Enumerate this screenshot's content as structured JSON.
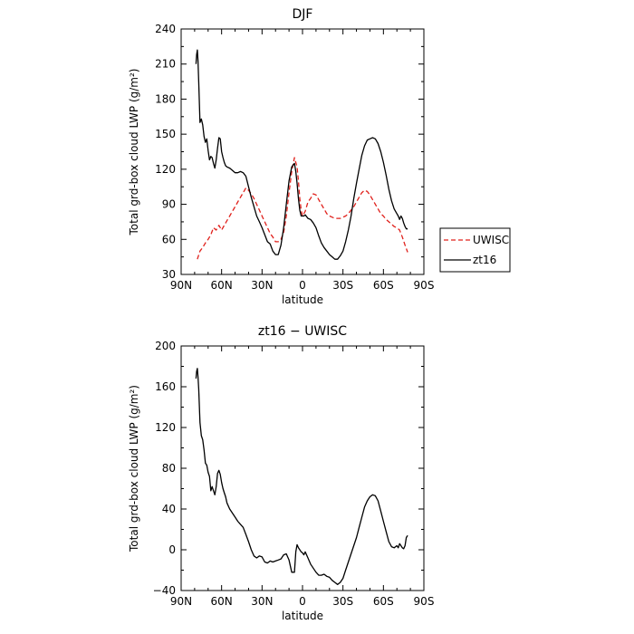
{
  "chart_data": [
    {
      "type": "line",
      "title": "DJF",
      "xlabel": "latitude",
      "ylabel": "Total grd-box cloud LWP (g/m²)",
      "xlim": [
        90,
        -90
      ],
      "ylim": [
        30,
        240
      ],
      "x_ticks": [
        {
          "value": 90,
          "label": "90N"
        },
        {
          "value": 60,
          "label": "60N"
        },
        {
          "value": 30,
          "label": "30N"
        },
        {
          "value": 0,
          "label": "0"
        },
        {
          "value": -30,
          "label": "30S"
        },
        {
          "value": -60,
          "label": "60S"
        },
        {
          "value": -90,
          "label": "90S"
        }
      ],
      "y_ticks": [
        {
          "value": 30,
          "label": "30"
        },
        {
          "value": 60,
          "label": "60"
        },
        {
          "value": 90,
          "label": "90"
        },
        {
          "value": 120,
          "label": "120"
        },
        {
          "value": 150,
          "label": "150"
        },
        {
          "value": 180,
          "label": "180"
        },
        {
          "value": 210,
          "label": "210"
        },
        {
          "value": 240,
          "label": "240"
        }
      ],
      "legend": {
        "placement": "right"
      },
      "series": [
        {
          "name": "UWISC",
          "color": "#e0201b",
          "dash": true,
          "x": [
            78,
            76,
            74,
            72,
            70,
            68,
            66,
            64,
            62,
            60,
            58,
            56,
            54,
            52,
            50,
            48,
            46,
            44,
            42,
            40,
            38,
            36,
            34,
            32,
            30,
            28,
            26,
            24,
            22,
            20,
            18,
            16,
            14,
            12,
            10,
            8,
            6,
            4,
            3,
            2,
            1,
            0,
            -2,
            -4,
            -6,
            -8,
            -10,
            -12,
            -14,
            -16,
            -18,
            -20,
            -22,
            -24,
            -26,
            -28,
            -30,
            -32,
            -34,
            -36,
            -38,
            -40,
            -42,
            -44,
            -46,
            -48,
            -50,
            -52,
            -54,
            -56,
            -58,
            -60,
            -62,
            -64,
            -66,
            -68,
            -70,
            -72,
            -74,
            -76,
            -78
          ],
          "y": [
            43,
            50,
            53,
            57,
            60,
            64,
            70,
            68,
            72,
            68,
            72,
            76,
            80,
            84,
            88,
            92,
            96,
            100,
            104,
            102,
            99,
            95,
            90,
            85,
            80,
            75,
            70,
            65,
            62,
            58,
            58,
            60,
            66,
            80,
            100,
            118,
            130,
            122,
            110,
            95,
            85,
            80,
            84,
            92,
            95,
            99,
            98,
            94,
            90,
            86,
            82,
            80,
            79,
            78,
            78,
            78,
            79,
            80,
            82,
            85,
            88,
            92,
            96,
            100,
            102,
            101,
            98,
            94,
            90,
            86,
            82,
            80,
            77,
            75,
            73,
            71,
            70,
            68,
            62,
            55,
            49
          ]
        },
        {
          "name": "zt16",
          "color": "#000000",
          "dash": false,
          "x": [
            79,
            78.5,
            78,
            77.5,
            77,
            76,
            75,
            74,
            73,
            72,
            71,
            70,
            69,
            68,
            67,
            66,
            65,
            64,
            63,
            62,
            61,
            60,
            59,
            58,
            57,
            56,
            54,
            52,
            50,
            48,
            46,
            44,
            42,
            40,
            38,
            36,
            34,
            32,
            30,
            28,
            26,
            24,
            22,
            20,
            18,
            16,
            14,
            12,
            10,
            8,
            6,
            5,
            4,
            3,
            2,
            1,
            0,
            -1,
            -2,
            -4,
            -6,
            -8,
            -10,
            -12,
            -14,
            -16,
            -18,
            -20,
            -22,
            -24,
            -26,
            -28,
            -30,
            -32,
            -34,
            -36,
            -38,
            -40,
            -42,
            -44,
            -46,
            -48,
            -50,
            -52,
            -54,
            -56,
            -58,
            -60,
            -62,
            -64,
            -66,
            -68,
            -70,
            -71,
            -72,
            -73,
            -74,
            -75,
            -76,
            -77,
            -78
          ],
          "y": [
            210,
            218,
            222,
            213,
            195,
            160,
            163,
            158,
            148,
            143,
            146,
            136,
            128,
            131,
            130,
            125,
            121,
            128,
            138,
            147,
            146,
            135,
            130,
            126,
            123,
            122,
            121,
            119,
            117,
            117,
            118,
            117,
            114,
            105,
            96,
            88,
            80,
            75,
            70,
            64,
            58,
            56,
            50,
            47,
            47,
            55,
            70,
            90,
            110,
            122,
            125,
            118,
            108,
            95,
            85,
            80,
            80,
            80,
            81,
            78,
            77,
            74,
            70,
            63,
            57,
            53,
            50,
            47,
            45,
            43,
            43,
            46,
            50,
            58,
            68,
            80,
            95,
            108,
            120,
            132,
            140,
            145,
            146,
            147,
            146,
            142,
            135,
            126,
            115,
            103,
            93,
            86,
            82,
            80,
            77,
            80,
            78,
            74,
            71,
            69,
            69
          ]
        }
      ]
    },
    {
      "type": "line",
      "title": "zt16 − UWISC",
      "xlabel": "latitude",
      "ylabel": "Total grd-box cloud LWP (g/m²)",
      "xlim": [
        90,
        -90
      ],
      "ylim": [
        -40,
        200
      ],
      "x_ticks": [
        {
          "value": 90,
          "label": "90N"
        },
        {
          "value": 60,
          "label": "60N"
        },
        {
          "value": 30,
          "label": "30N"
        },
        {
          "value": 0,
          "label": "0"
        },
        {
          "value": -30,
          "label": "30S"
        },
        {
          "value": -60,
          "label": "60S"
        },
        {
          "value": -90,
          "label": "90S"
        }
      ],
      "y_ticks": [
        {
          "value": -40,
          "label": "−40"
        },
        {
          "value": 0,
          "label": "0"
        },
        {
          "value": 40,
          "label": "40"
        },
        {
          "value": 80,
          "label": "80"
        },
        {
          "value": 120,
          "label": "120"
        },
        {
          "value": 160,
          "label": "160"
        },
        {
          "value": 200,
          "label": "200"
        }
      ],
      "series": [
        {
          "color": "#000000",
          "dash": false,
          "x": [
            79,
            78.5,
            78,
            77.5,
            77,
            76,
            75,
            74,
            73,
            72,
            71,
            70,
            69,
            68,
            67,
            66,
            65,
            64,
            63,
            62,
            61,
            60,
            59,
            58,
            57,
            56,
            54,
            52,
            50,
            48,
            46,
            44,
            42,
            40,
            38,
            36,
            34,
            32,
            30,
            28,
            26,
            24,
            22,
            20,
            18,
            16,
            14,
            12,
            10,
            8,
            6,
            5,
            4,
            3,
            2,
            1,
            0,
            -1,
            -2,
            -4,
            -6,
            -8,
            -10,
            -12,
            -14,
            -16,
            -18,
            -20,
            -22,
            -24,
            -26,
            -28,
            -30,
            -32,
            -34,
            -36,
            -38,
            -40,
            -42,
            -44,
            -46,
            -48,
            -50,
            -52,
            -54,
            -56,
            -58,
            -60,
            -62,
            -64,
            -66,
            -68,
            -70,
            -71,
            -72,
            -73,
            -74,
            -75,
            -76,
            -77,
            -78
          ],
          "y": [
            168,
            175,
            178,
            170,
            158,
            125,
            112,
            108,
            98,
            85,
            83,
            76,
            72,
            58,
            62,
            58,
            54,
            62,
            75,
            78,
            74,
            66,
            60,
            56,
            52,
            46,
            40,
            36,
            32,
            28,
            25,
            22,
            15,
            8,
            0,
            -6,
            -8,
            -6,
            -7,
            -12,
            -13,
            -11,
            -12,
            -11,
            -10,
            -9,
            -5,
            -4,
            -10,
            -22,
            -22,
            -2,
            5,
            2,
            0,
            -2,
            -3,
            -5,
            -2,
            -8,
            -14,
            -18,
            -22,
            -25,
            -25,
            -24,
            -26,
            -27,
            -30,
            -32,
            -34,
            -32,
            -28,
            -20,
            -12,
            -4,
            4,
            12,
            22,
            32,
            42,
            48,
            52,
            54,
            53,
            48,
            38,
            28,
            18,
            8,
            3,
            2,
            4,
            2,
            6,
            4,
            2,
            1,
            4,
            12,
            14
          ]
        }
      ]
    }
  ]
}
